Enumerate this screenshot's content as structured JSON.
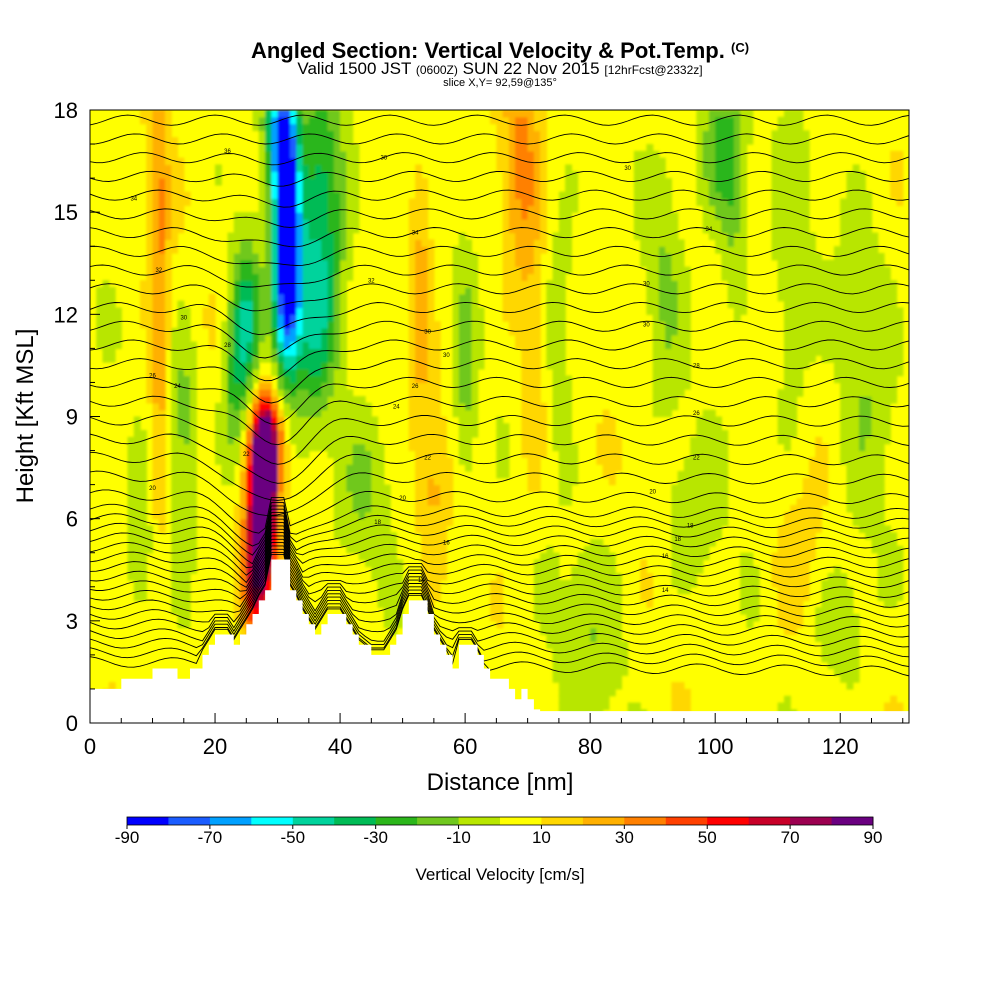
{
  "header": {
    "title_main": "Angled Section: Vertical Velocity & Pot.Temp.",
    "title_sup": "(C)",
    "subtitle_valid": "Valid 1500 JST",
    "subtitle_z": "(0600Z)",
    "subtitle_date": "SUN 22 Nov 2015",
    "subtitle_fcst": "[12hrFcst@2332z]",
    "slice": "slice X,Y= 92,59@135°"
  },
  "chart_data": {
    "type": "heatmap",
    "xlabel": "Distance [nm]",
    "ylabel": "Height [Kft MSL]",
    "xlim": [
      0,
      131
    ],
    "ylim": [
      0,
      18
    ],
    "x_ticks": [
      0,
      20,
      40,
      60,
      80,
      100,
      120
    ],
    "y_ticks": [
      0,
      3,
      6,
      9,
      12,
      15,
      18
    ],
    "colorbar": {
      "title": "Vertical Velocity [cm/s]",
      "labels": [
        "-90",
        "-70",
        "-50",
        "-30",
        "-10",
        "10",
        "30",
        "50",
        "70",
        "90"
      ],
      "levels": [
        -90,
        -80,
        -70,
        -60,
        -50,
        -40,
        -30,
        -20,
        -10,
        0,
        10,
        20,
        30,
        40,
        50,
        60,
        70,
        80,
        90
      ],
      "colors": [
        "#0000ff",
        "#1a5cff",
        "#00a0ff",
        "#00ffff",
        "#00d39c",
        "#00bb55",
        "#2bb61a",
        "#70c81e",
        "#b8e600",
        "#ffff00",
        "#ffd700",
        "#ffb000",
        "#ff8000",
        "#ff4000",
        "#ff0000",
        "#c80028",
        "#9c0050",
        "#6a0080"
      ]
    },
    "terrain_profile": [
      [
        0,
        1.0
      ],
      [
        4,
        1.0
      ],
      [
        5,
        1.3
      ],
      [
        9,
        1.3
      ],
      [
        10,
        1.6
      ],
      [
        13,
        1.6
      ],
      [
        14,
        1.3
      ],
      [
        15,
        1.3
      ],
      [
        16,
        1.6
      ],
      [
        17,
        1.6
      ],
      [
        18,
        2.0
      ],
      [
        19,
        2.3
      ],
      [
        20,
        2.6
      ],
      [
        22,
        2.6
      ],
      [
        23,
        2.3
      ],
      [
        24,
        2.6
      ],
      [
        25,
        2.9
      ],
      [
        26,
        3.2
      ],
      [
        27,
        3.6
      ],
      [
        28,
        3.9
      ],
      [
        29,
        4.8
      ],
      [
        31,
        4.8
      ],
      [
        32,
        3.9
      ],
      [
        33,
        3.6
      ],
      [
        34,
        3.2
      ],
      [
        35,
        2.9
      ],
      [
        36,
        2.6
      ],
      [
        37,
        2.9
      ],
      [
        38,
        3.2
      ],
      [
        40,
        3.2
      ],
      [
        41,
        2.9
      ],
      [
        42,
        2.6
      ],
      [
        43,
        2.3
      ],
      [
        45,
        2.0
      ],
      [
        47,
        2.0
      ],
      [
        48,
        2.3
      ],
      [
        49,
        2.6
      ],
      [
        50,
        3.2
      ],
      [
        51,
        3.6
      ],
      [
        53,
        3.6
      ],
      [
        54,
        3.2
      ],
      [
        55,
        2.6
      ],
      [
        56,
        2.3
      ],
      [
        57,
        2.0
      ],
      [
        58,
        1.6
      ],
      [
        59,
        2.3
      ],
      [
        61,
        2.3
      ],
      [
        62,
        2.0
      ],
      [
        63,
        1.6
      ],
      [
        64,
        1.3
      ],
      [
        66,
        1.3
      ],
      [
        67,
        1.0
      ],
      [
        68,
        0.7
      ],
      [
        69,
        1.0
      ],
      [
        70,
        0.7
      ],
      [
        71,
        0.4
      ],
      [
        72,
        0.35
      ],
      [
        131,
        0.35
      ]
    ],
    "velocity_features": [
      {
        "x": 28,
        "y": 6.8,
        "sx": 1.2,
        "sy": 1.5,
        "value": 92
      },
      {
        "x": 27,
        "y": 5.6,
        "sx": 1.6,
        "sy": 1.8,
        "value": 60
      },
      {
        "x": 28.5,
        "y": 8.2,
        "sx": 1.8,
        "sy": 1.0,
        "value": 55
      },
      {
        "x": 26,
        "y": 4.0,
        "sx": 1.4,
        "sy": 1.2,
        "value": 35
      },
      {
        "x": 31.5,
        "y": 15.5,
        "sx": 1.4,
        "sy": 2.3,
        "value": -85
      },
      {
        "x": 31.5,
        "y": 12.5,
        "sx": 1.6,
        "sy": 1.8,
        "value": -65
      },
      {
        "x": 30,
        "y": 17.5,
        "sx": 1.5,
        "sy": 1.2,
        "value": -50
      },
      {
        "x": 25,
        "y": 11.8,
        "sx": 1.6,
        "sy": 1.6,
        "value": -45
      },
      {
        "x": 37,
        "y": 15.5,
        "sx": 2.8,
        "sy": 2.8,
        "value": -42
      },
      {
        "x": 36,
        "y": 11.5,
        "sx": 2.2,
        "sy": 1.8,
        "value": -30
      },
      {
        "x": 23,
        "y": 9.5,
        "sx": 1.5,
        "sy": 1.6,
        "value": -25
      },
      {
        "x": 11,
        "y": 15,
        "sx": 1.2,
        "sy": 3.5,
        "value": 25
      },
      {
        "x": 11,
        "y": 8,
        "sx": 1.2,
        "sy": 2.5,
        "value": 15
      },
      {
        "x": 15,
        "y": 9,
        "sx": 1.5,
        "sy": 2.0,
        "value": -20
      },
      {
        "x": 8,
        "y": 5,
        "sx": 1.5,
        "sy": 1.5,
        "value": -15
      },
      {
        "x": 44,
        "y": 7,
        "sx": 3.0,
        "sy": 1.5,
        "value": -14
      },
      {
        "x": 53,
        "y": 13,
        "sx": 1.2,
        "sy": 3.0,
        "value": 20
      },
      {
        "x": 55,
        "y": 7,
        "sx": 1.5,
        "sy": 1.5,
        "value": 15
      },
      {
        "x": 60,
        "y": 10,
        "sx": 1.2,
        "sy": 2.5,
        "value": -18
      },
      {
        "x": 69,
        "y": 16.5,
        "sx": 2.2,
        "sy": 2.8,
        "value": 25
      },
      {
        "x": 71,
        "y": 10,
        "sx": 1.5,
        "sy": 2.5,
        "value": 14
      },
      {
        "x": 75,
        "y": 12,
        "sx": 2.0,
        "sy": 2.5,
        "value": -14
      },
      {
        "x": 80,
        "y": 2.5,
        "sx": 4.0,
        "sy": 2.0,
        "value": -12
      },
      {
        "x": 92,
        "y": 13,
        "sx": 2.0,
        "sy": 2.5,
        "value": -14
      },
      {
        "x": 101,
        "y": 17,
        "sx": 2.5,
        "sy": 1.6,
        "value": -30
      },
      {
        "x": 103,
        "y": 14.5,
        "sx": 1.5,
        "sy": 2.0,
        "value": -15
      },
      {
        "x": 112,
        "y": 12,
        "sx": 2.5,
        "sy": 3.5,
        "value": -12
      },
      {
        "x": 124,
        "y": 10,
        "sx": 3.0,
        "sy": 3.5,
        "value": -12
      },
      {
        "x": 96,
        "y": 6,
        "sx": 3.0,
        "sy": 1.5,
        "value": -12
      },
      {
        "x": 113,
        "y": 4.5,
        "sx": 3.0,
        "sy": 2.0,
        "value": 12
      },
      {
        "x": 120,
        "y": 3,
        "sx": 4.0,
        "sy": 1.5,
        "value": -12
      }
    ],
    "isentrope_labels": [
      {
        "x": 22,
        "y": 16.8,
        "text": "36"
      },
      {
        "x": 47,
        "y": 16.6,
        "text": "36"
      },
      {
        "x": 86,
        "y": 16.3,
        "text": "30"
      },
      {
        "x": 7,
        "y": 15.4,
        "text": "34"
      },
      {
        "x": 52,
        "y": 14.4,
        "text": "34"
      },
      {
        "x": 99,
        "y": 14.5,
        "text": "34"
      },
      {
        "x": 11,
        "y": 13.3,
        "text": "32"
      },
      {
        "x": 45,
        "y": 13.0,
        "text": "32"
      },
      {
        "x": 89,
        "y": 12.9,
        "text": "30"
      },
      {
        "x": 15,
        "y": 11.9,
        "text": "30"
      },
      {
        "x": 54,
        "y": 11.5,
        "text": "30"
      },
      {
        "x": 89,
        "y": 11.7,
        "text": "30"
      },
      {
        "x": 22,
        "y": 11.1,
        "text": "28"
      },
      {
        "x": 57,
        "y": 10.8,
        "text": "30"
      },
      {
        "x": 97,
        "y": 10.5,
        "text": "28"
      },
      {
        "x": 10,
        "y": 10.2,
        "text": "26"
      },
      {
        "x": 14,
        "y": 9.9,
        "text": "24"
      },
      {
        "x": 52,
        "y": 9.9,
        "text": "26"
      },
      {
        "x": 49,
        "y": 9.3,
        "text": "24"
      },
      {
        "x": 97,
        "y": 9.1,
        "text": "26"
      },
      {
        "x": 25,
        "y": 7.9,
        "text": "22"
      },
      {
        "x": 54,
        "y": 7.8,
        "text": "22"
      },
      {
        "x": 97,
        "y": 7.8,
        "text": "22"
      },
      {
        "x": 10,
        "y": 6.9,
        "text": "20"
      },
      {
        "x": 50,
        "y": 6.6,
        "text": "20"
      },
      {
        "x": 90,
        "y": 6.8,
        "text": "20"
      },
      {
        "x": 46,
        "y": 5.9,
        "text": "18"
      },
      {
        "x": 96,
        "y": 5.8,
        "text": "18"
      },
      {
        "x": 94,
        "y": 5.4,
        "text": "18"
      },
      {
        "x": 57,
        "y": 5.3,
        "text": "16"
      },
      {
        "x": 92,
        "y": 4.9,
        "text": "16"
      },
      {
        "x": 53,
        "y": 4.2,
        "text": "14"
      },
      {
        "x": 92,
        "y": 3.9,
        "text": "14"
      }
    ]
  }
}
